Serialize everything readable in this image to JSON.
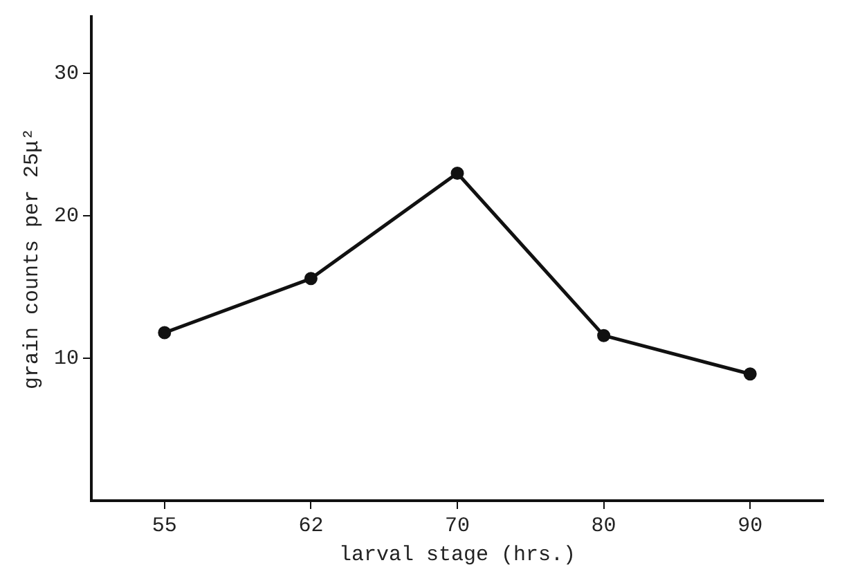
{
  "chart_data": {
    "type": "line",
    "xlabel": "larval stage (hrs.)",
    "ylabel": "grain counts per 25μ²",
    "categories": [
      "55",
      "62",
      "70",
      "80",
      "90"
    ],
    "series": [
      {
        "color": "#111111",
        "values": [
          11.8,
          15.6,
          23,
          11.6,
          8.9
        ]
      }
    ],
    "ylim": [
      0,
      34
    ],
    "yticks": [
      10,
      20,
      30
    ],
    "grid": false,
    "legend": false,
    "marker": "circle",
    "line_style": "solid"
  }
}
